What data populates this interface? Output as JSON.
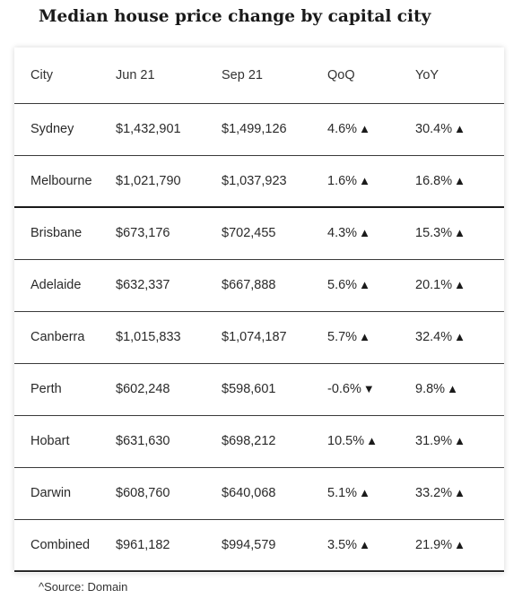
{
  "title": "Median house price change by capital city",
  "source": "^Source: Domain",
  "chart_data": {
    "type": "table",
    "title": "Median house price change by capital city",
    "columns": [
      "City",
      "Jun 21",
      "Sep 21",
      "QoQ",
      "YoY"
    ],
    "rows": [
      {
        "city": "Sydney",
        "jun21": "$1,432,901",
        "sep21": "$1,499,126",
        "qoq": "4.6%",
        "qoq_dir": "up",
        "yoy": "30.4%",
        "yoy_dir": "up"
      },
      {
        "city": "Melbourne",
        "jun21": "$1,021,790",
        "sep21": "$1,037,923",
        "qoq": "1.6%",
        "qoq_dir": "up",
        "yoy": "16.8%",
        "yoy_dir": "up"
      },
      {
        "city": "Brisbane",
        "jun21": "$673,176",
        "sep21": "$702,455",
        "qoq": "4.3%",
        "qoq_dir": "up",
        "yoy": "15.3%",
        "yoy_dir": "up"
      },
      {
        "city": "Adelaide",
        "jun21": "$632,337",
        "sep21": "$667,888",
        "qoq": "5.6%",
        "qoq_dir": "up",
        "yoy": "20.1%",
        "yoy_dir": "up"
      },
      {
        "city": "Canberra",
        "jun21": "$1,015,833",
        "sep21": "$1,074,187",
        "qoq": "5.7%",
        "qoq_dir": "up",
        "yoy": "32.4%",
        "yoy_dir": "up"
      },
      {
        "city": "Perth",
        "jun21": "$602,248",
        "sep21": "$598,601",
        "qoq": "-0.6%",
        "qoq_dir": "down",
        "yoy": "9.8%",
        "yoy_dir": "up"
      },
      {
        "city": "Hobart",
        "jun21": "$631,630",
        "sep21": "$698,212",
        "qoq": "10.5%",
        "qoq_dir": "up",
        "yoy": "31.9%",
        "yoy_dir": "up"
      },
      {
        "city": "Darwin",
        "jun21": "$608,760",
        "sep21": "$640,068",
        "qoq": "5.1%",
        "qoq_dir": "up",
        "yoy": "33.2%",
        "yoy_dir": "up"
      },
      {
        "city": "Combined",
        "jun21": "$961,182",
        "sep21": "$994,579",
        "qoq": "3.5%",
        "qoq_dir": "up",
        "yoy": "21.9%",
        "yoy_dir": "up"
      }
    ]
  }
}
